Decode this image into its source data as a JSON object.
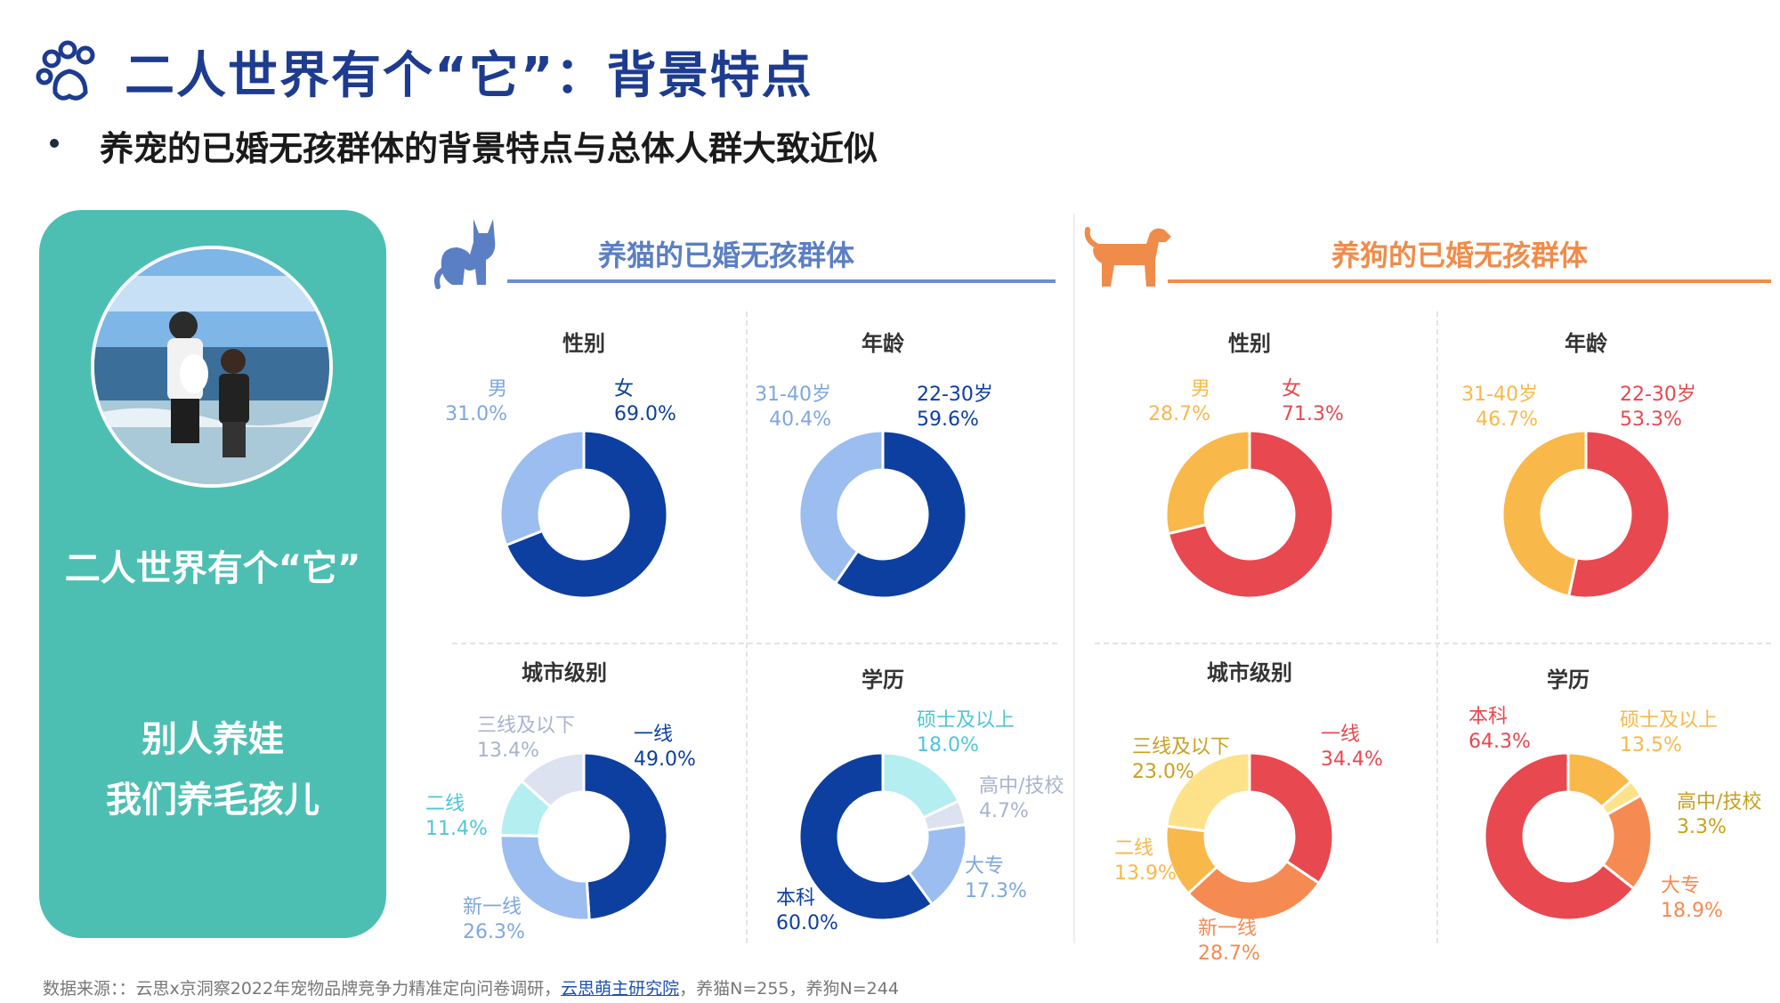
{
  "header": {
    "title": "二人世界有个“它”：背景特点",
    "subtitle": "养宠的已婚无孩群体的背景特点与总体人群大致近似"
  },
  "card": {
    "headline": "二人世界有个“它”",
    "line1": "别人养娃",
    "line2": "我们养毛孩儿",
    "bg_color": "#4dbfb2"
  },
  "groups": {
    "cat": {
      "label": "养猫的已婚无孩群体",
      "color": "#5b7fc4",
      "icon": "cat-icon"
    },
    "dog": {
      "label": "养狗的已婚无孩群体",
      "color": "#f08c4a",
      "icon": "dog-icon"
    }
  },
  "panel_titles": {
    "cat_gender": "性别",
    "cat_age": "年龄",
    "cat_city": "城市级别",
    "cat_edu": "学历",
    "dog_gender": "性别",
    "dog_age": "年龄",
    "dog_city": "城市级别",
    "dog_edu": "学历"
  },
  "chart_data": [
    {
      "type": "pie",
      "group": "cat",
      "title": "性别",
      "categories": [
        "女",
        "男"
      ],
      "values": [
        69.0,
        31.0
      ],
      "labels": [
        "69.0%",
        "31.0%"
      ],
      "colors": [
        "#0d3fa0",
        "#9bbdef"
      ]
    },
    {
      "type": "pie",
      "group": "cat",
      "title": "年龄",
      "categories": [
        "22-30岁",
        "31-40岁"
      ],
      "values": [
        59.6,
        40.4
      ],
      "labels": [
        "59.6%",
        "40.4%"
      ],
      "colors": [
        "#0d3fa0",
        "#9bbdef"
      ]
    },
    {
      "type": "pie",
      "group": "cat",
      "title": "城市级别",
      "categories": [
        "一线",
        "新一线",
        "二线",
        "三线及以下"
      ],
      "values": [
        49.0,
        26.3,
        11.4,
        13.4
      ],
      "labels": [
        "49.0%",
        "26.3%",
        "11.4%",
        "13.4%"
      ],
      "colors": [
        "#0d3fa0",
        "#9bbdef",
        "#b5eef0",
        "#dde2f1"
      ]
    },
    {
      "type": "pie",
      "group": "cat",
      "title": "学历",
      "categories": [
        "硕士及以上",
        "高中/技校",
        "大专",
        "本科"
      ],
      "values": [
        18.0,
        4.7,
        17.3,
        60.0
      ],
      "labels": [
        "18.0%",
        "4.7%",
        "17.3%",
        "60.0%"
      ],
      "colors": [
        "#b5eef0",
        "#dde2f1",
        "#9bbdef",
        "#0d3fa0"
      ]
    },
    {
      "type": "pie",
      "group": "dog",
      "title": "性别",
      "categories": [
        "女",
        "男"
      ],
      "values": [
        71.3,
        28.7
      ],
      "labels": [
        "71.3%",
        "28.7%"
      ],
      "colors": [
        "#e8484f",
        "#f9b84a"
      ]
    },
    {
      "type": "pie",
      "group": "dog",
      "title": "年龄",
      "categories": [
        "22-30岁",
        "31-40岁"
      ],
      "values": [
        53.3,
        46.7
      ],
      "labels": [
        "53.3%",
        "46.7%"
      ],
      "colors": [
        "#e8484f",
        "#f9b84a"
      ]
    },
    {
      "type": "pie",
      "group": "dog",
      "title": "城市级别",
      "categories": [
        "一线",
        "新一线",
        "二线",
        "三线及以下"
      ],
      "values": [
        34.4,
        28.7,
        13.9,
        23.0
      ],
      "labels": [
        "34.4%",
        "28.7%",
        "13.9%",
        "23.0%"
      ],
      "colors": [
        "#e8484f",
        "#f58a52",
        "#f9b84a",
        "#fde28a"
      ]
    },
    {
      "type": "pie",
      "group": "dog",
      "title": "学历",
      "categories": [
        "硕士及以上",
        "高中/技校",
        "大专",
        "本科"
      ],
      "values": [
        13.5,
        3.3,
        18.9,
        64.3
      ],
      "labels": [
        "13.5%",
        "3.3%",
        "18.9%",
        "64.3%"
      ],
      "colors": [
        "#f9b84a",
        "#fde28a",
        "#f58a52",
        "#e8484f"
      ]
    }
  ],
  "footer": {
    "source_prefix": "数据来源：：云思x京洞察2022年宠物品牌竞争力精准定向问卷调研，",
    "source_link": "云思萌主研究院",
    "source_suffix": "，养猫N=255，养狗N=244"
  },
  "icons": {
    "title": "paw-icon"
  }
}
